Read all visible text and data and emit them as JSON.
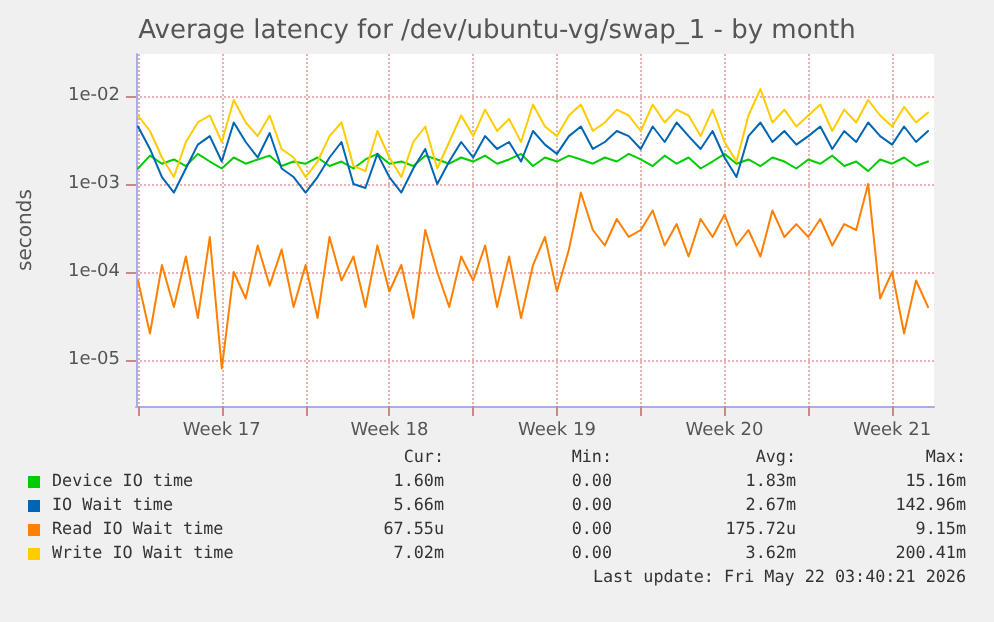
{
  "chart_data": {
    "type": "line",
    "title": "Average latency for /dev/ubuntu-vg/swap_1 - by month",
    "ylabel": "seconds",
    "log": "y",
    "grid": true,
    "legend": "bottom",
    "marker": "none",
    "line_style": "solid",
    "ylim": [
      3e-06,
      0.03
    ],
    "yticks": [
      {
        "value": 1e-05,
        "label": "1e-05"
      },
      {
        "value": 0.0001,
        "label": "1e-04"
      },
      {
        "value": 0.001,
        "label": "1e-03"
      },
      {
        "value": 0.01,
        "label": "1e-02"
      }
    ],
    "xlim": [
      "2026-04-19T22:00",
      "2026-05-23T06:00"
    ],
    "xticks": [
      {
        "value": "2026-04-20T00:00",
        "label": null
      },
      {
        "value": "2026-04-23T12:00",
        "label": "Week 17"
      },
      {
        "value": "2026-04-27T00:00",
        "label": null
      },
      {
        "value": "2026-04-30T12:00",
        "label": "Week 18"
      },
      {
        "value": "2026-05-04T00:00",
        "label": null
      },
      {
        "value": "2026-05-07T12:00",
        "label": "Week 19"
      },
      {
        "value": "2026-05-11T00:00",
        "label": null
      },
      {
        "value": "2026-05-14T12:00",
        "label": "Week 20"
      },
      {
        "value": "2026-05-18T00:00",
        "label": null
      },
      {
        "value": "2026-05-21T12:00",
        "label": "Week 21"
      }
    ],
    "x": [
      "2026-04-20T00:00",
      "2026-04-20T12:00",
      "2026-04-21T00:00",
      "2026-04-21T12:00",
      "2026-04-22T00:00",
      "2026-04-22T12:00",
      "2026-04-23T00:00",
      "2026-04-23T12:00",
      "2026-04-24T00:00",
      "2026-04-24T12:00",
      "2026-04-25T00:00",
      "2026-04-25T12:00",
      "2026-04-26T00:00",
      "2026-04-26T12:00",
      "2026-04-27T00:00",
      "2026-04-27T12:00",
      "2026-04-28T00:00",
      "2026-04-28T12:00",
      "2026-04-29T00:00",
      "2026-04-29T12:00",
      "2026-04-30T00:00",
      "2026-04-30T12:00",
      "2026-05-01T00:00",
      "2026-05-01T12:00",
      "2026-05-02T00:00",
      "2026-05-02T12:00",
      "2026-05-03T00:00",
      "2026-05-03T12:00",
      "2026-05-04T00:00",
      "2026-05-04T12:00",
      "2026-05-05T00:00",
      "2026-05-05T12:00",
      "2026-05-06T00:00",
      "2026-05-06T12:00",
      "2026-05-07T00:00",
      "2026-05-07T12:00",
      "2026-05-08T00:00",
      "2026-05-08T12:00",
      "2026-05-09T00:00",
      "2026-05-09T12:00",
      "2026-05-10T00:00",
      "2026-05-10T12:00",
      "2026-05-11T00:00",
      "2026-05-11T12:00",
      "2026-05-12T00:00",
      "2026-05-12T12:00",
      "2026-05-13T00:00",
      "2026-05-13T12:00",
      "2026-05-14T00:00",
      "2026-05-14T12:00",
      "2026-05-15T00:00",
      "2026-05-15T12:00",
      "2026-05-16T00:00",
      "2026-05-16T12:00",
      "2026-05-17T00:00",
      "2026-05-17T12:00",
      "2026-05-18T00:00",
      "2026-05-18T12:00",
      "2026-05-19T00:00",
      "2026-05-19T12:00",
      "2026-05-20T00:00",
      "2026-05-20T12:00",
      "2026-05-21T00:00",
      "2026-05-21T12:00",
      "2026-05-22T00:00",
      "2026-05-22T12:00",
      "2026-05-23T00:00"
    ],
    "series": [
      {
        "name": "Device IO time",
        "color": "#00cc00",
        "values": [
          0.0015,
          0.0021,
          0.0017,
          0.0019,
          0.0016,
          0.0022,
          0.0018,
          0.0015,
          0.002,
          0.0017,
          0.0019,
          0.0021,
          0.0016,
          0.0018,
          0.0017,
          0.002,
          0.0016,
          0.0018,
          0.0015,
          0.0019,
          0.0022,
          0.0017,
          0.0018,
          0.0016,
          0.0021,
          0.0019,
          0.0017,
          0.002,
          0.0018,
          0.0021,
          0.0017,
          0.0019,
          0.0022,
          0.0016,
          0.002,
          0.0018,
          0.0021,
          0.0019,
          0.0017,
          0.002,
          0.0018,
          0.0022,
          0.0019,
          0.0016,
          0.0021,
          0.0017,
          0.002,
          0.0015,
          0.0018,
          0.0022,
          0.0017,
          0.0019,
          0.0016,
          0.002,
          0.0018,
          0.0015,
          0.0019,
          0.0017,
          0.0021,
          0.0016,
          0.0018,
          0.0014,
          0.0019,
          0.0017,
          0.002,
          0.0016,
          0.0018
        ]
      },
      {
        "name": "IO Wait time",
        "color": "#0066b3",
        "values": [
          0.0045,
          0.0025,
          0.0012,
          0.0008,
          0.0015,
          0.0028,
          0.0035,
          0.0018,
          0.005,
          0.003,
          0.002,
          0.0038,
          0.0015,
          0.0012,
          0.0008,
          0.0012,
          0.002,
          0.003,
          0.001,
          0.0009,
          0.0022,
          0.0012,
          0.0008,
          0.0015,
          0.0025,
          0.001,
          0.0018,
          0.003,
          0.002,
          0.0035,
          0.0025,
          0.003,
          0.0018,
          0.004,
          0.0028,
          0.0022,
          0.0035,
          0.0045,
          0.0025,
          0.003,
          0.004,
          0.0035,
          0.0025,
          0.0045,
          0.003,
          0.005,
          0.0035,
          0.0025,
          0.004,
          0.002,
          0.0012,
          0.0035,
          0.005,
          0.003,
          0.004,
          0.0028,
          0.0035,
          0.0045,
          0.0025,
          0.004,
          0.003,
          0.005,
          0.0035,
          0.0028,
          0.0045,
          0.003,
          0.004
        ]
      },
      {
        "name": "Read IO Wait time",
        "color": "#ff8000",
        "values": [
          8e-05,
          2e-05,
          0.00012,
          4e-05,
          0.00015,
          3e-05,
          0.00025,
          8e-06,
          0.0001,
          5e-05,
          0.0002,
          7e-05,
          0.00018,
          4e-05,
          0.00012,
          3e-05,
          0.00025,
          8e-05,
          0.00015,
          4e-05,
          0.0002,
          6e-05,
          0.00012,
          3e-05,
          0.0003,
          0.0001,
          4e-05,
          0.00015,
          8e-05,
          0.0002,
          4e-05,
          0.00015,
          3e-05,
          0.00012,
          0.00025,
          6e-05,
          0.00018,
          0.0008,
          0.0003,
          0.0002,
          0.0004,
          0.00025,
          0.0003,
          0.0005,
          0.0002,
          0.00035,
          0.00015,
          0.0004,
          0.00025,
          0.00045,
          0.0002,
          0.0003,
          0.00015,
          0.0005,
          0.00025,
          0.00035,
          0.00025,
          0.0004,
          0.0002,
          0.00035,
          0.0003,
          0.001,
          5e-05,
          0.0001,
          2e-05,
          8e-05,
          4e-05
        ]
      },
      {
        "name": "Write IO Wait time",
        "color": "#ffcc00",
        "values": [
          0.006,
          0.004,
          0.002,
          0.0012,
          0.003,
          0.005,
          0.006,
          0.003,
          0.009,
          0.005,
          0.0035,
          0.006,
          0.0025,
          0.002,
          0.0012,
          0.0018,
          0.0035,
          0.005,
          0.0016,
          0.0014,
          0.004,
          0.002,
          0.0012,
          0.003,
          0.0045,
          0.0015,
          0.003,
          0.006,
          0.0035,
          0.007,
          0.004,
          0.0055,
          0.003,
          0.008,
          0.0045,
          0.0035,
          0.006,
          0.008,
          0.004,
          0.005,
          0.007,
          0.006,
          0.004,
          0.008,
          0.005,
          0.007,
          0.006,
          0.0035,
          0.007,
          0.003,
          0.0018,
          0.006,
          0.012,
          0.005,
          0.007,
          0.0045,
          0.006,
          0.008,
          0.004,
          0.007,
          0.005,
          0.009,
          0.006,
          0.0045,
          0.0075,
          0.005,
          0.0065
        ]
      }
    ],
    "annotations": [
      "Cur:",
      "Min:",
      "Avg:",
      "Max:",
      "1.60m",
      "0.00",
      "1.83m",
      "15.16m",
      "5.66m",
      "0.00",
      "2.67m",
      "142.96m",
      "67.55u",
      "0.00",
      "175.72u",
      "9.15m",
      "7.02m",
      "0.00",
      "3.62m",
      "200.41m",
      "Last update: Fri May 22 03:40:21 2026"
    ]
  }
}
